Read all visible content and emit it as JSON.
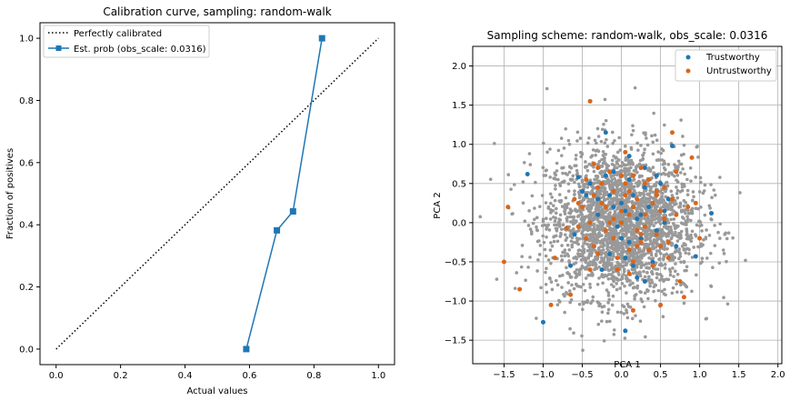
{
  "chart_data": [
    {
      "type": "line",
      "title": "Calibration curve, sampling: random-walk",
      "xlabel": "Actual values",
      "ylabel": "Fraction of positives",
      "xlim": [
        -0.05,
        1.05
      ],
      "ylim": [
        -0.05,
        1.05
      ],
      "xticks": [
        "0.0",
        "0.2",
        "0.4",
        "0.6",
        "0.8",
        "1.0"
      ],
      "yticks": [
        "0.0",
        "0.2",
        "0.4",
        "0.6",
        "0.8",
        "1.0"
      ],
      "grid": false,
      "legend": "upper-left",
      "series": [
        {
          "name": "Perfectly calibrated",
          "style": "dotted",
          "color": "#000000",
          "x": [
            0.0,
            1.0
          ],
          "y": [
            0.0,
            1.0
          ]
        },
        {
          "name": "Est. prob (obs_scale: 0.0316)",
          "style": "solid-square-markers",
          "color": "#1f77b4",
          "x": [
            0.59,
            0.685,
            0.735,
            0.825
          ],
          "y": [
            0.0,
            0.382,
            0.443,
            1.0
          ]
        }
      ]
    },
    {
      "type": "scatter",
      "title": "Sampling scheme: random-walk, obs_scale: 0.0316",
      "xlabel": "PCA 1",
      "ylabel": "PCA 2",
      "xlim": [
        -1.9,
        2.05
      ],
      "ylim": [
        -1.8,
        2.25
      ],
      "xticks": [
        "-1.5",
        "-1.0",
        "-0.5",
        "0.0",
        "0.5",
        "1.0",
        "1.5",
        "2.0"
      ],
      "yticks": [
        "-1.5",
        "-1.0",
        "-0.5",
        "0.0",
        "0.5",
        "1.0",
        "1.5",
        "2.0"
      ],
      "grid": true,
      "legend": "upper-right",
      "background_cloud_color": "#999999",
      "series": [
        {
          "name": "Trustworthy",
          "color": "#1f77b4",
          "x": [
            -0.45,
            -0.3,
            0.1,
            0.25,
            -0.15,
            0.4,
            0.55,
            -0.6,
            -0.2,
            0.05,
            0.3,
            0.15,
            -0.35,
            0.45,
            0.6,
            -0.05,
            0.2,
            -0.5,
            0.35,
            0.0,
            -0.25,
            0.5,
            0.1,
            -0.1,
            0.3,
            0.7,
            -0.4,
            0.25,
            0.05,
            -0.15,
            0.4,
            -0.65,
            0.15,
            0.55,
            -0.3,
            0.0,
            0.2,
            -0.1,
            0.35,
            0.45,
            -1.2,
            1.15,
            -1.0,
            0.05,
            0.95,
            0.65,
            -0.55,
            0.3,
            -0.2,
            0.1
          ],
          "y": [
            0.35,
            0.1,
            0.55,
            -0.2,
            -0.4,
            0.25,
            0.0,
            -0.15,
            0.6,
            0.15,
            0.45,
            -0.55,
            -0.3,
            -0.1,
            0.3,
            -0.05,
            0.05,
            0.4,
            -0.35,
            0.25,
            -0.6,
            0.5,
            -0.25,
            0.2,
            0.7,
            -0.3,
            0.5,
            0.1,
            -0.45,
            0.35,
            -0.5,
            -0.55,
            0.35,
            0.15,
            0.3,
            -0.2,
            -0.7,
            0.65,
            0.2,
            0.6,
            0.62,
            0.12,
            -1.27,
            -1.38,
            -0.43,
            0.98,
            0.58,
            -0.75,
            1.15,
            0.85
          ]
        },
        {
          "name": "Untrustworthy",
          "color": "#d9661b",
          "x": [
            -0.4,
            0.2,
            -0.1,
            0.5,
            -0.3,
            0.35,
            0.0,
            -0.55,
            0.15,
            0.45,
            -0.2,
            0.25,
            0.6,
            -0.45,
            0.1,
            -0.05,
            0.3,
            -0.35,
            0.55,
            0.05,
            -0.25,
            0.4,
            -0.15,
            0.2,
            0.65,
            -0.5,
            0.1,
            -0.3,
            0.35,
            0.0,
            0.5,
            -0.1,
            0.25,
            -0.4,
            0.15,
            0.7,
            -0.6,
            0.45,
            -0.2,
            0.3,
            0.05,
            -0.35,
            0.55,
            0.1,
            -0.15,
            0.4,
            -0.45,
            0.2,
            0.0,
            -0.25,
            0.3,
            0.6,
            -0.55,
            0.15,
            -0.05,
            0.45,
            -0.3,
            0.25,
            0.1,
            -0.1,
            -1.45,
            -1.5,
            -1.3,
            0.7,
            -0.4,
            0.9,
            0.85,
            -0.7,
            0.65,
            -0.85,
            1.0,
            -0.9,
            0.8,
            0.15,
            -0.65,
            0.5,
            0.95,
            -0.35,
            0.75,
            0.05
          ],
          "y": [
            0.0,
            0.3,
            -0.2,
            0.15,
            0.45,
            -0.35,
            0.6,
            -0.05,
            -0.5,
            0.4,
            0.2,
            -0.15,
            -0.25,
            0.55,
            0.1,
            -0.45,
            0.5,
            -0.3,
            0.05,
            0.35,
            0.25,
            -0.55,
            0.65,
            -0.1,
            0.3,
            0.2,
            -0.65,
            -0.4,
            0.55,
            0.0,
            -0.3,
            0.4,
            0.7,
            -0.6,
            0.2,
            0.1,
            0.3,
            -0.15,
            -0.1,
            -0.05,
            0.5,
            0.35,
            0.45,
            -0.35,
            0.0,
            0.25,
            -0.2,
            -0.3,
            0.15,
            0.5,
            0.1,
            -0.45,
            0.25,
            0.6,
            -0.6,
            0.35,
            0.7,
            -0.25,
            0.4,
            0.05,
            0.2,
            -0.5,
            -0.85,
            0.65,
            1.55,
            0.83,
            0.2,
            -0.07,
            1.15,
            -0.45,
            -0.2,
            -1.05,
            -0.95,
            -1.12,
            -0.92,
            -1.05,
            0.25,
            0.75,
            -0.75,
            0.9
          ]
        }
      ]
    }
  ]
}
